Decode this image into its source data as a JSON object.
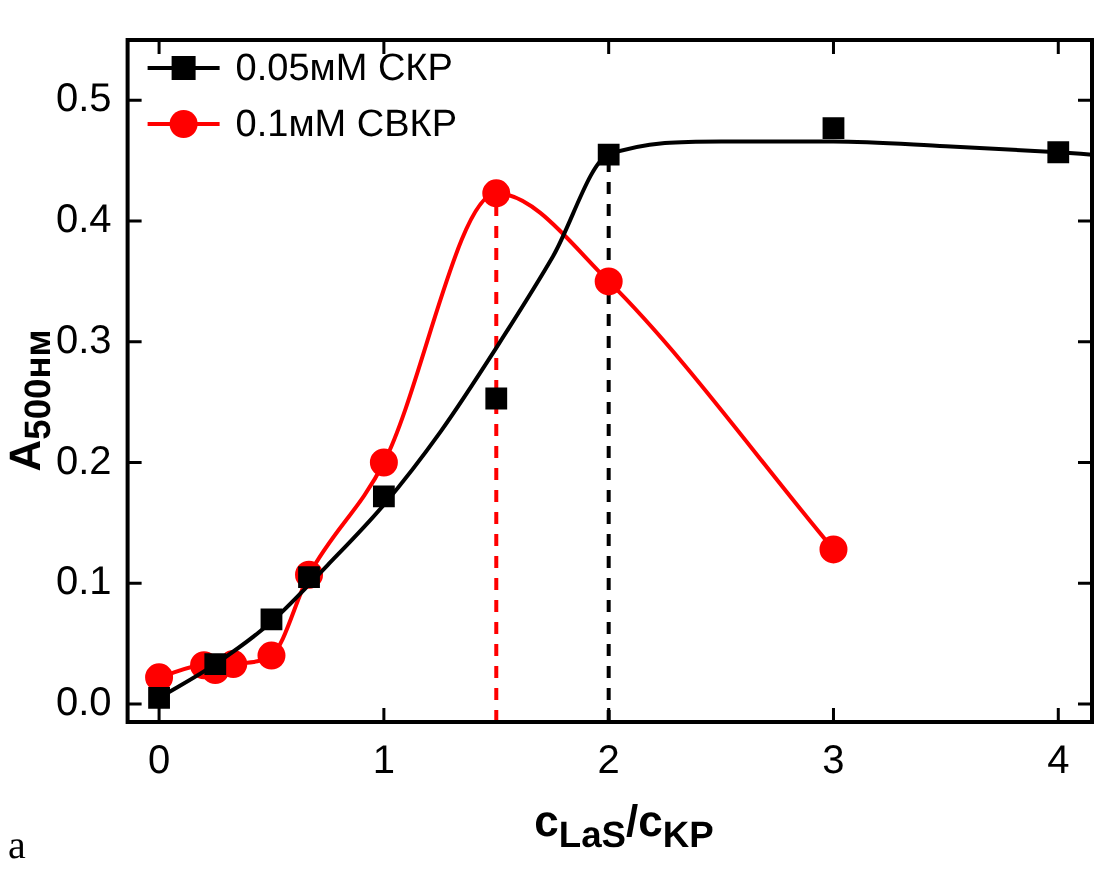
{
  "chart_data": {
    "type": "line",
    "xlabel": "c$_{LaS}$/c$_{KP}$",
    "ylabel": "A$_{500нм}$",
    "xlim": [
      -0.14,
      4.15
    ],
    "xticks": [
      0,
      1,
      2,
      3,
      4
    ],
    "ylim": [
      -0.015,
      0.55
    ],
    "yticks": [
      {
        "value": 0,
        "label": "0.0"
      },
      0.1,
      0.2,
      0.3,
      0.4,
      0.5
    ],
    "grid": false,
    "legend": "top left",
    "series": [
      {
        "name": "0.05мМ СКР",
        "type": "scatter",
        "marker": "square",
        "color": "#000000",
        "x": [
          0,
          0.25,
          0.5,
          0.667,
          1,
          1.5,
          2,
          3,
          4
        ],
        "values": [
          0.005,
          0.033,
          0.07,
          0.105,
          0.172,
          0.253,
          0.455,
          0.477,
          0.457
        ]
      },
      {
        "marker": "none",
        "color": "#000000",
        "x": [
          0,
          0.25,
          0.5,
          0.75,
          1,
          1.25,
          1.5,
          1.75,
          2,
          2.5,
          3,
          3.5,
          4,
          4.15
        ],
        "values": [
          0.005,
          0.033,
          0.068,
          0.115,
          0.165,
          0.225,
          0.295,
          0.37,
          0.455,
          0.466,
          0.466,
          0.462,
          0.457,
          0.455
        ]
      },
      {
        "name": "0.1мМ СВКР",
        "marker": "circle",
        "color": "#ff0000",
        "x": [
          0,
          0.2,
          0.25,
          0.33,
          0.5,
          0.667,
          1,
          1.5,
          2,
          3
        ],
        "values": [
          0.022,
          0.032,
          0.028,
          0.033,
          0.04,
          0.107,
          0.2,
          0.423,
          0.35,
          0.128
        ]
      }
    ],
    "ref_lines": [
      {
        "axis": "x",
        "value": 1.5,
        "color": "#ff0000",
        "line_style": "dashed"
      },
      {
        "axis": "x",
        "value": 2,
        "color": "#000000",
        "line_style": "dashed"
      }
    ],
    "annotations": [
      "a"
    ]
  }
}
